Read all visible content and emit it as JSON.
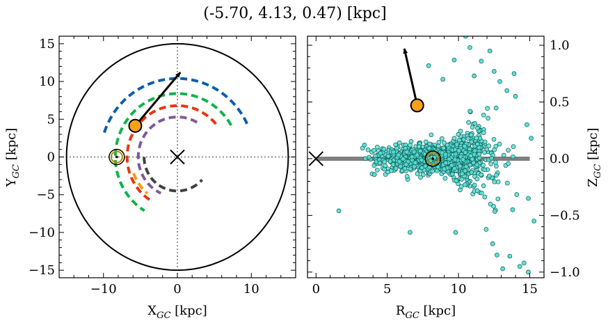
{
  "figure": {
    "title": "(-5.70, 4.13, 0.47) [kpc]"
  },
  "colors": {
    "spiral_outer": "#0a5ea8",
    "spiral_green": "#10b349",
    "spiral_red": "#ea3510",
    "spiral_purple": "#7e599b",
    "spiral_orange": "#f39c12",
    "spiral_inner": "#404040",
    "source_marker": "#f5a11a",
    "stars_fill": "#5be0d6",
    "stars_edge": "#0f5a55",
    "disk_line": "#808080",
    "sun_ring": "#b58a00"
  },
  "chart_data": [
    {
      "type": "scatter",
      "panel": "left",
      "xlabel": "X",
      "xlabel_sub": "GC",
      "xlabel_unit": " [kpc]",
      "ylabel": "Y",
      "ylabel_sub": "GC",
      "ylabel_unit": " [kpc]",
      "xlim": [
        -16,
        16
      ],
      "ylim": [
        -16,
        16
      ],
      "xticks": [
        -10,
        0,
        10
      ],
      "xtick_labels": [
        "−10",
        "0",
        "10"
      ],
      "yticks": [
        -15,
        -10,
        -5,
        0,
        5,
        10,
        15
      ],
      "ytick_labels": [
        "−15",
        "−10",
        "−5",
        "0",
        "5",
        "10",
        "15"
      ],
      "boundary_circle_radius": 15,
      "galactic_center": [
        0,
        0
      ],
      "sun_position": [
        -8.2,
        0
      ],
      "source_position": [
        -5.7,
        4.13
      ],
      "velocity_arrow_tip": [
        0.4,
        11.2
      ],
      "spiral_arms": [
        {
          "color_key": "spiral_outer",
          "radius": 10.4,
          "angle_start": 25,
          "angle_end": 165
        },
        {
          "color_key": "spiral_green",
          "radius": 8.4,
          "angle_start": 30,
          "angle_end": 238
        },
        {
          "color_key": "spiral_red",
          "radius": 6.8,
          "angle_start": 40,
          "angle_end": 238
        },
        {
          "color_key": "spiral_purple",
          "radius": 5.3,
          "angle_start": 60,
          "angle_end": 245
        },
        {
          "color_key": "spiral_orange",
          "radius": 6.3,
          "angle_start": 200,
          "angle_end": 230
        },
        {
          "color_key": "spiral_inner",
          "radius": 4.5,
          "angle_start": 180,
          "angle_end": 318
        }
      ]
    },
    {
      "type": "scatter",
      "panel": "right",
      "xlabel": "R",
      "xlabel_sub": "GC",
      "xlabel_unit": " [kpc]",
      "ylabel": "Z",
      "ylabel_sub": "GC",
      "ylabel_unit": " [kpc]",
      "ylabel_side": "right",
      "xlim": [
        -0.6,
        16
      ],
      "ylim": [
        -1.05,
        1.08
      ],
      "xticks": [
        0,
        5,
        10,
        15
      ],
      "xtick_labels": [
        "0",
        "5",
        "10",
        "15"
      ],
      "yticks": [
        -1.0,
        -0.5,
        0.0,
        0.5,
        1.0
      ],
      "ytick_labels": [
        "−1.0",
        "−0.5",
        "0.0",
        "0.5",
        "1.0"
      ],
      "disk_line": {
        "y": 0,
        "x_range": [
          0,
          15
        ]
      },
      "galactic_center": [
        0,
        0
      ],
      "sun_position": [
        8.2,
        0
      ],
      "source_position": [
        7.1,
        0.47
      ],
      "velocity_arrow_tip": [
        6.2,
        0.97
      ],
      "star_cloud": {
        "count": 1100,
        "center_R": 8.5,
        "sigma_R": 2.0,
        "sigma_Z_base": 0.055,
        "outliers": [
          [
            1.6,
            -0.46
          ],
          [
            6.6,
            -0.65
          ],
          [
            9.8,
            -0.65
          ],
          [
            12.7,
            -0.85
          ],
          [
            13.1,
            -0.97
          ],
          [
            14.3,
            -0.95
          ],
          [
            14.9,
            -1.0
          ],
          [
            12.4,
            -0.75
          ],
          [
            13.6,
            -0.86
          ],
          [
            14.6,
            -0.92
          ],
          [
            12.2,
            0.95
          ],
          [
            11.6,
            0.86
          ],
          [
            10.8,
            0.98
          ],
          [
            12.5,
            0.77
          ],
          [
            9.7,
            0.87
          ],
          [
            10.5,
            1.08
          ],
          [
            13.9,
            0.75
          ],
          [
            11.1,
            0.73
          ],
          [
            8.9,
            0.7
          ],
          [
            7.9,
            0.82
          ],
          [
            14.0,
            0.55
          ],
          [
            13.4,
            0.6
          ],
          [
            12.9,
            0.68
          ],
          [
            3.4,
            0.12
          ],
          [
            4.1,
            -0.14
          ],
          [
            14.8,
            0.3
          ],
          [
            15.1,
            0.18
          ],
          [
            14.9,
            -0.35
          ],
          [
            15.3,
            -0.55
          ],
          [
            13.8,
            -0.45
          ]
        ]
      }
    }
  ]
}
